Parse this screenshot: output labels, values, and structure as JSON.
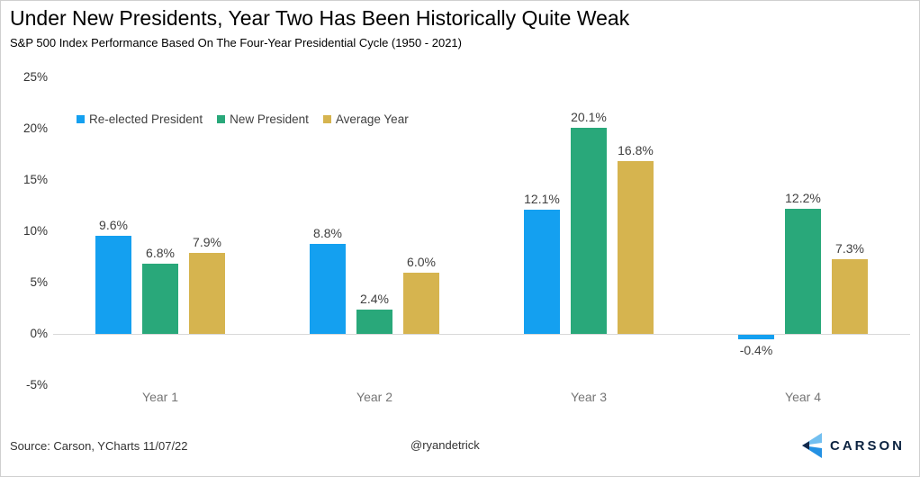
{
  "header": {
    "title": "Under New Presidents, Year Two Has Been Historically Quite Weak",
    "subtitle": "S&P 500 Index Performance Based On The Four-Year Presidential Cycle (1950 - 2021)"
  },
  "chart_data": {
    "type": "bar",
    "title": "Under New Presidents, Year Two Has Been Historically Quite Weak",
    "subtitle": "S&P 500 Index Performance Based On The Four-Year Presidential Cycle (1950 - 2021)",
    "categories": [
      "Year 1",
      "Year 2",
      "Year 3",
      "Year 4"
    ],
    "series": [
      {
        "name": "Re-elected President",
        "color": "#14A0F0",
        "values": [
          9.6,
          8.8,
          12.1,
          -0.4
        ]
      },
      {
        "name": "New President",
        "color": "#29A87A",
        "values": [
          6.8,
          2.4,
          20.1,
          12.2
        ]
      },
      {
        "name": "Average Year",
        "color": "#D6B44F",
        "values": [
          7.9,
          6.0,
          16.8,
          7.3
        ]
      }
    ],
    "y_ticks": [
      25,
      20,
      15,
      10,
      5,
      0,
      -5
    ],
    "ylim": [
      -5,
      25
    ],
    "y_tick_suffix": "%",
    "value_label_suffix": "%",
    "grid": "baseline-only",
    "legend_position": "top-left"
  },
  "footer": {
    "source": "Source: Carson, YCharts 11/07/22",
    "handle": "@ryandetrick"
  },
  "logo": {
    "text": "CARSON",
    "icon": "carson-chevron-icon",
    "colors": {
      "light_blue": "#72BFF0",
      "mid_blue": "#2491E3",
      "navy": "#13294B",
      "text": "#0C2340"
    }
  },
  "colors": {
    "baseline": "#D9D9D9",
    "y_tick_label": "#333333",
    "category_label": "#757575",
    "value_label": "#404040"
  }
}
